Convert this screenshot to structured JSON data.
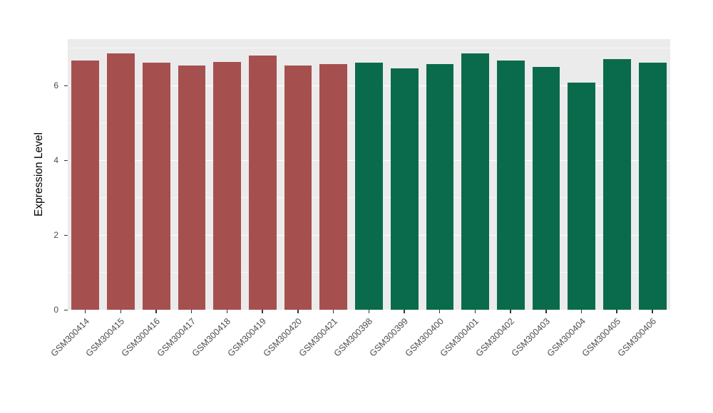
{
  "chart_data": {
    "type": "bar",
    "ylabel": "Expression Level",
    "ylim": [
      0,
      7.24
    ],
    "yticks": [
      0,
      2,
      4,
      6
    ],
    "yticks_minor": [
      1,
      3,
      5,
      7
    ],
    "categories": [
      "GSM300414",
      "GSM300415",
      "GSM300416",
      "GSM300417",
      "GSM300418",
      "GSM300419",
      "GSM300420",
      "GSM300421",
      "GSM300398",
      "GSM300399",
      "GSM300400",
      "GSM300401",
      "GSM300402",
      "GSM300403",
      "GSM300404",
      "GSM300405",
      "GSM300406"
    ],
    "values": [
      6.67,
      6.85,
      6.62,
      6.53,
      6.63,
      6.8,
      6.54,
      6.58,
      6.62,
      6.45,
      6.58,
      6.85,
      6.66,
      6.5,
      6.08,
      6.7,
      6.62
    ],
    "groups": [
      "maroon",
      "maroon",
      "maroon",
      "maroon",
      "maroon",
      "maroon",
      "maroon",
      "maroon",
      "green",
      "green",
      "green",
      "green",
      "green",
      "green",
      "green",
      "green",
      "green"
    ],
    "colors": {
      "maroon": "#A5504F",
      "green": "#0A6B4C"
    },
    "panel_bg": "#EBEBEB",
    "grid_color": "#FFFFFF",
    "axis_text_color": "#4D4D4D",
    "legend": "none",
    "grid": "on"
  }
}
